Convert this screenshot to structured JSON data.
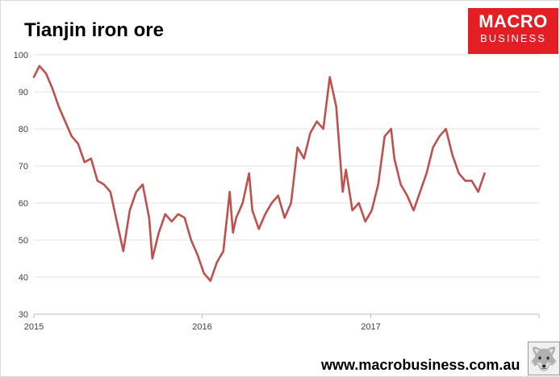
{
  "chart_data": {
    "type": "line",
    "title": "Tianjin iron ore",
    "xlabel": "",
    "ylabel": "",
    "ylim": [
      30,
      100
    ],
    "xlim": [
      "2015-01-01",
      "2018-01-01"
    ],
    "yticks": [
      30,
      40,
      50,
      60,
      70,
      80,
      90,
      100
    ],
    "xticks": [
      "2015",
      "2016",
      "2017"
    ],
    "grid": true,
    "line_color": "#c0504d",
    "series": [
      {
        "x": [
          "2015-01-01",
          "2015-01-13",
          "2015-01-27",
          "2015-02-10",
          "2015-02-24",
          "2015-03-10",
          "2015-03-24",
          "2015-04-07",
          "2015-04-21",
          "2015-05-05",
          "2015-05-19",
          "2015-06-02",
          "2015-06-16",
          "2015-06-30",
          "2015-07-14",
          "2015-07-28",
          "2015-08-11",
          "2015-08-25",
          "2015-09-08",
          "2015-09-15",
          "2015-09-29",
          "2015-10-13",
          "2015-10-27",
          "2015-11-10",
          "2015-11-24",
          "2015-12-08",
          "2015-12-22",
          "2016-01-05",
          "2016-01-19",
          "2016-02-02",
          "2016-02-16",
          "2016-03-01",
          "2016-03-08",
          "2016-03-15",
          "2016-03-29",
          "2016-04-12",
          "2016-04-19",
          "2016-05-03",
          "2016-05-17",
          "2016-05-31",
          "2016-06-14",
          "2016-06-28",
          "2016-07-12",
          "2016-07-26",
          "2016-08-09",
          "2016-08-23",
          "2016-09-06",
          "2016-09-20",
          "2016-10-04",
          "2016-10-18",
          "2016-11-01",
          "2016-11-08",
          "2016-11-22",
          "2016-12-06",
          "2016-12-20",
          "2017-01-03",
          "2017-01-17",
          "2017-01-31",
          "2017-02-14",
          "2017-02-21",
          "2017-03-07",
          "2017-03-21",
          "2017-04-04",
          "2017-04-18",
          "2017-05-02",
          "2017-05-16",
          "2017-05-30",
          "2017-06-13",
          "2017-06-27",
          "2017-07-11",
          "2017-07-25",
          "2017-08-08",
          "2017-08-22",
          "2017-09-05"
        ],
        "values": [
          94,
          97,
          95,
          91,
          86,
          82,
          78,
          76,
          71,
          72,
          66,
          65,
          63,
          55,
          47,
          58,
          63,
          65,
          56,
          45,
          52,
          57,
          55,
          57,
          56,
          50,
          46,
          41,
          39,
          44,
          47,
          63,
          52,
          56,
          60,
          68,
          58,
          53,
          57,
          60,
          62,
          56,
          60,
          75,
          72,
          79,
          82,
          80,
          94,
          86,
          63,
          69,
          58,
          60,
          55,
          58,
          65,
          78,
          80,
          72,
          65,
          62,
          58,
          63,
          68,
          75,
          78,
          80,
          73,
          68,
          66,
          66,
          63,
          68
        ]
      }
    ]
  },
  "logo": {
    "line1": "MACRO",
    "line2": "BUSINESS"
  },
  "footer": {
    "url": "www.macrobusiness.com.au"
  }
}
